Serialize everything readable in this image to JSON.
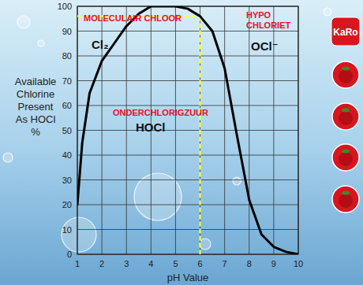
{
  "chart_data": {
    "type": "line",
    "ylabel": "Available\nChlorine\nPresent\nAs HOCl\n%",
    "xlabel": "pH Value",
    "x": [
      1,
      1.2,
      1.5,
      2,
      2.5,
      3,
      3.5,
      4,
      4.5,
      5,
      5.5,
      6,
      6.5,
      7,
      7.5,
      8,
      8.5,
      9,
      9.5,
      10
    ],
    "values": [
      20,
      45,
      65,
      78,
      85,
      92,
      97,
      100,
      100,
      100,
      99,
      96,
      90,
      75,
      48,
      22,
      8,
      3,
      1,
      0
    ],
    "color": "#000000",
    "xlim": [
      1,
      10
    ],
    "xticks": [
      1,
      2,
      3,
      4,
      5,
      6,
      7,
      8,
      9,
      10
    ],
    "ylim": [
      0,
      100
    ],
    "yticks": [
      0,
      10,
      20,
      30,
      40,
      50,
      60,
      70,
      80,
      90,
      100
    ],
    "grid": true,
    "reference_lines": {
      "x": 6,
      "y": 96
    },
    "annotations": [
      "MOLECULAIR CHLOOR",
      "Cl₂",
      "HYPO\nCHLORIET",
      "OCl⁻",
      "ONDERCHLORIGZUUR",
      "HOCl"
    ],
    "logo": "KaRo"
  }
}
